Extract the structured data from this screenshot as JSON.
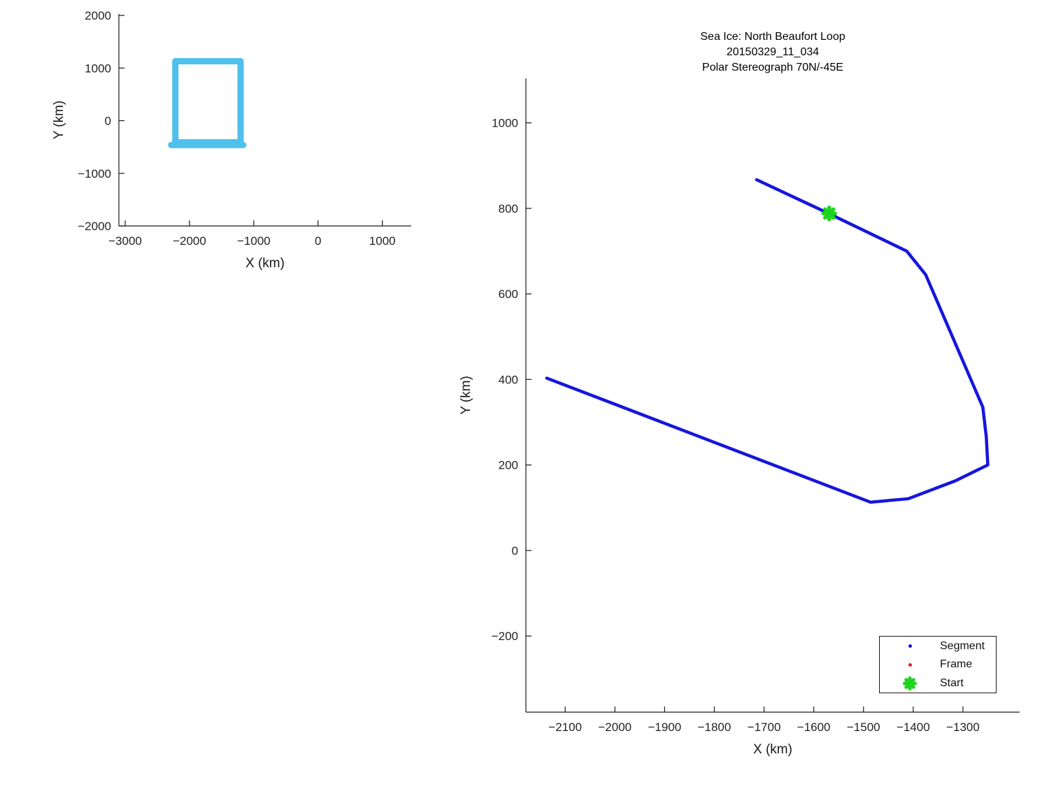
{
  "figure": {
    "title_lines": [
      "Sea Ice: North Beaufort Loop",
      "20150329_11_034",
      "Polar Stereograph 70N/-45E"
    ]
  },
  "colors": {
    "segment_blue": "#1616dd",
    "frame_red": "#dd2020",
    "start_green": "#1fd41f",
    "overview_cyan": "#4fc0ec",
    "axis_black": "#1a1a1a"
  },
  "chart_data": [
    {
      "id": "overview",
      "type": "line",
      "title": "",
      "xlabel": "X (km)",
      "ylabel": "Y (km)",
      "xlim": [
        -3098,
        1449
      ],
      "ylim": [
        -2000,
        2027
      ],
      "xticks": [
        -3000,
        -2000,
        -1000,
        0,
        1000
      ],
      "yticks": [
        -2000,
        -1000,
        0,
        1000,
        2000
      ],
      "grid": false,
      "series": [
        {
          "name": "loop-outline",
          "color": "overview_cyan",
          "width": 9,
          "closed": true,
          "points": [
            [
              -2220,
              1130
            ],
            [
              -1205,
              1130
            ],
            [
              -1205,
              -410
            ],
            [
              -2220,
              -410
            ]
          ]
        },
        {
          "name": "loop-closing-tail",
          "color": "overview_cyan",
          "width": 9,
          "closed": false,
          "points": [
            [
              -2285,
              -462
            ],
            [
              -1162,
              -462
            ]
          ]
        }
      ]
    },
    {
      "id": "main",
      "type": "line",
      "title": "Sea Ice: North Beaufort Loop / 20150329_11_034 / Polar Stereograph 70N/-45E",
      "xlabel": "X (km)",
      "ylabel": "Y (km)",
      "xlim": [
        -2179,
        -1186
      ],
      "ylim": [
        -378,
        1104
      ],
      "xticks": [
        -2100,
        -2000,
        -1900,
        -1800,
        -1700,
        -1600,
        -1500,
        -1400,
        -1300
      ],
      "yticks": [
        -200,
        0,
        200,
        400,
        600,
        800,
        1000
      ],
      "grid": false,
      "series": [
        {
          "name": "segment-trajectory",
          "color": "segment_blue",
          "width": 4.5,
          "closed": false,
          "points": [
            [
              -1715,
              867
            ],
            [
              -1570,
              788
            ],
            [
              -1413,
              700
            ],
            [
              -1375,
              645
            ],
            [
              -1260,
              335
            ],
            [
              -1253,
              265
            ],
            [
              -1250,
              200
            ],
            [
              -1315,
              163
            ],
            [
              -1410,
              121
            ],
            [
              -1486,
              113
            ],
            [
              -2137,
              403
            ]
          ]
        }
      ],
      "start_point": [
        -1569,
        788
      ],
      "legend": {
        "position": "lower right",
        "items": [
          {
            "label": "Segment",
            "marker": "dot",
            "color": "segment_blue"
          },
          {
            "label": "Frame",
            "marker": "dot",
            "color": "frame_red"
          },
          {
            "label": "Start",
            "marker": "asterisk",
            "color": "start_green"
          }
        ]
      }
    }
  ]
}
